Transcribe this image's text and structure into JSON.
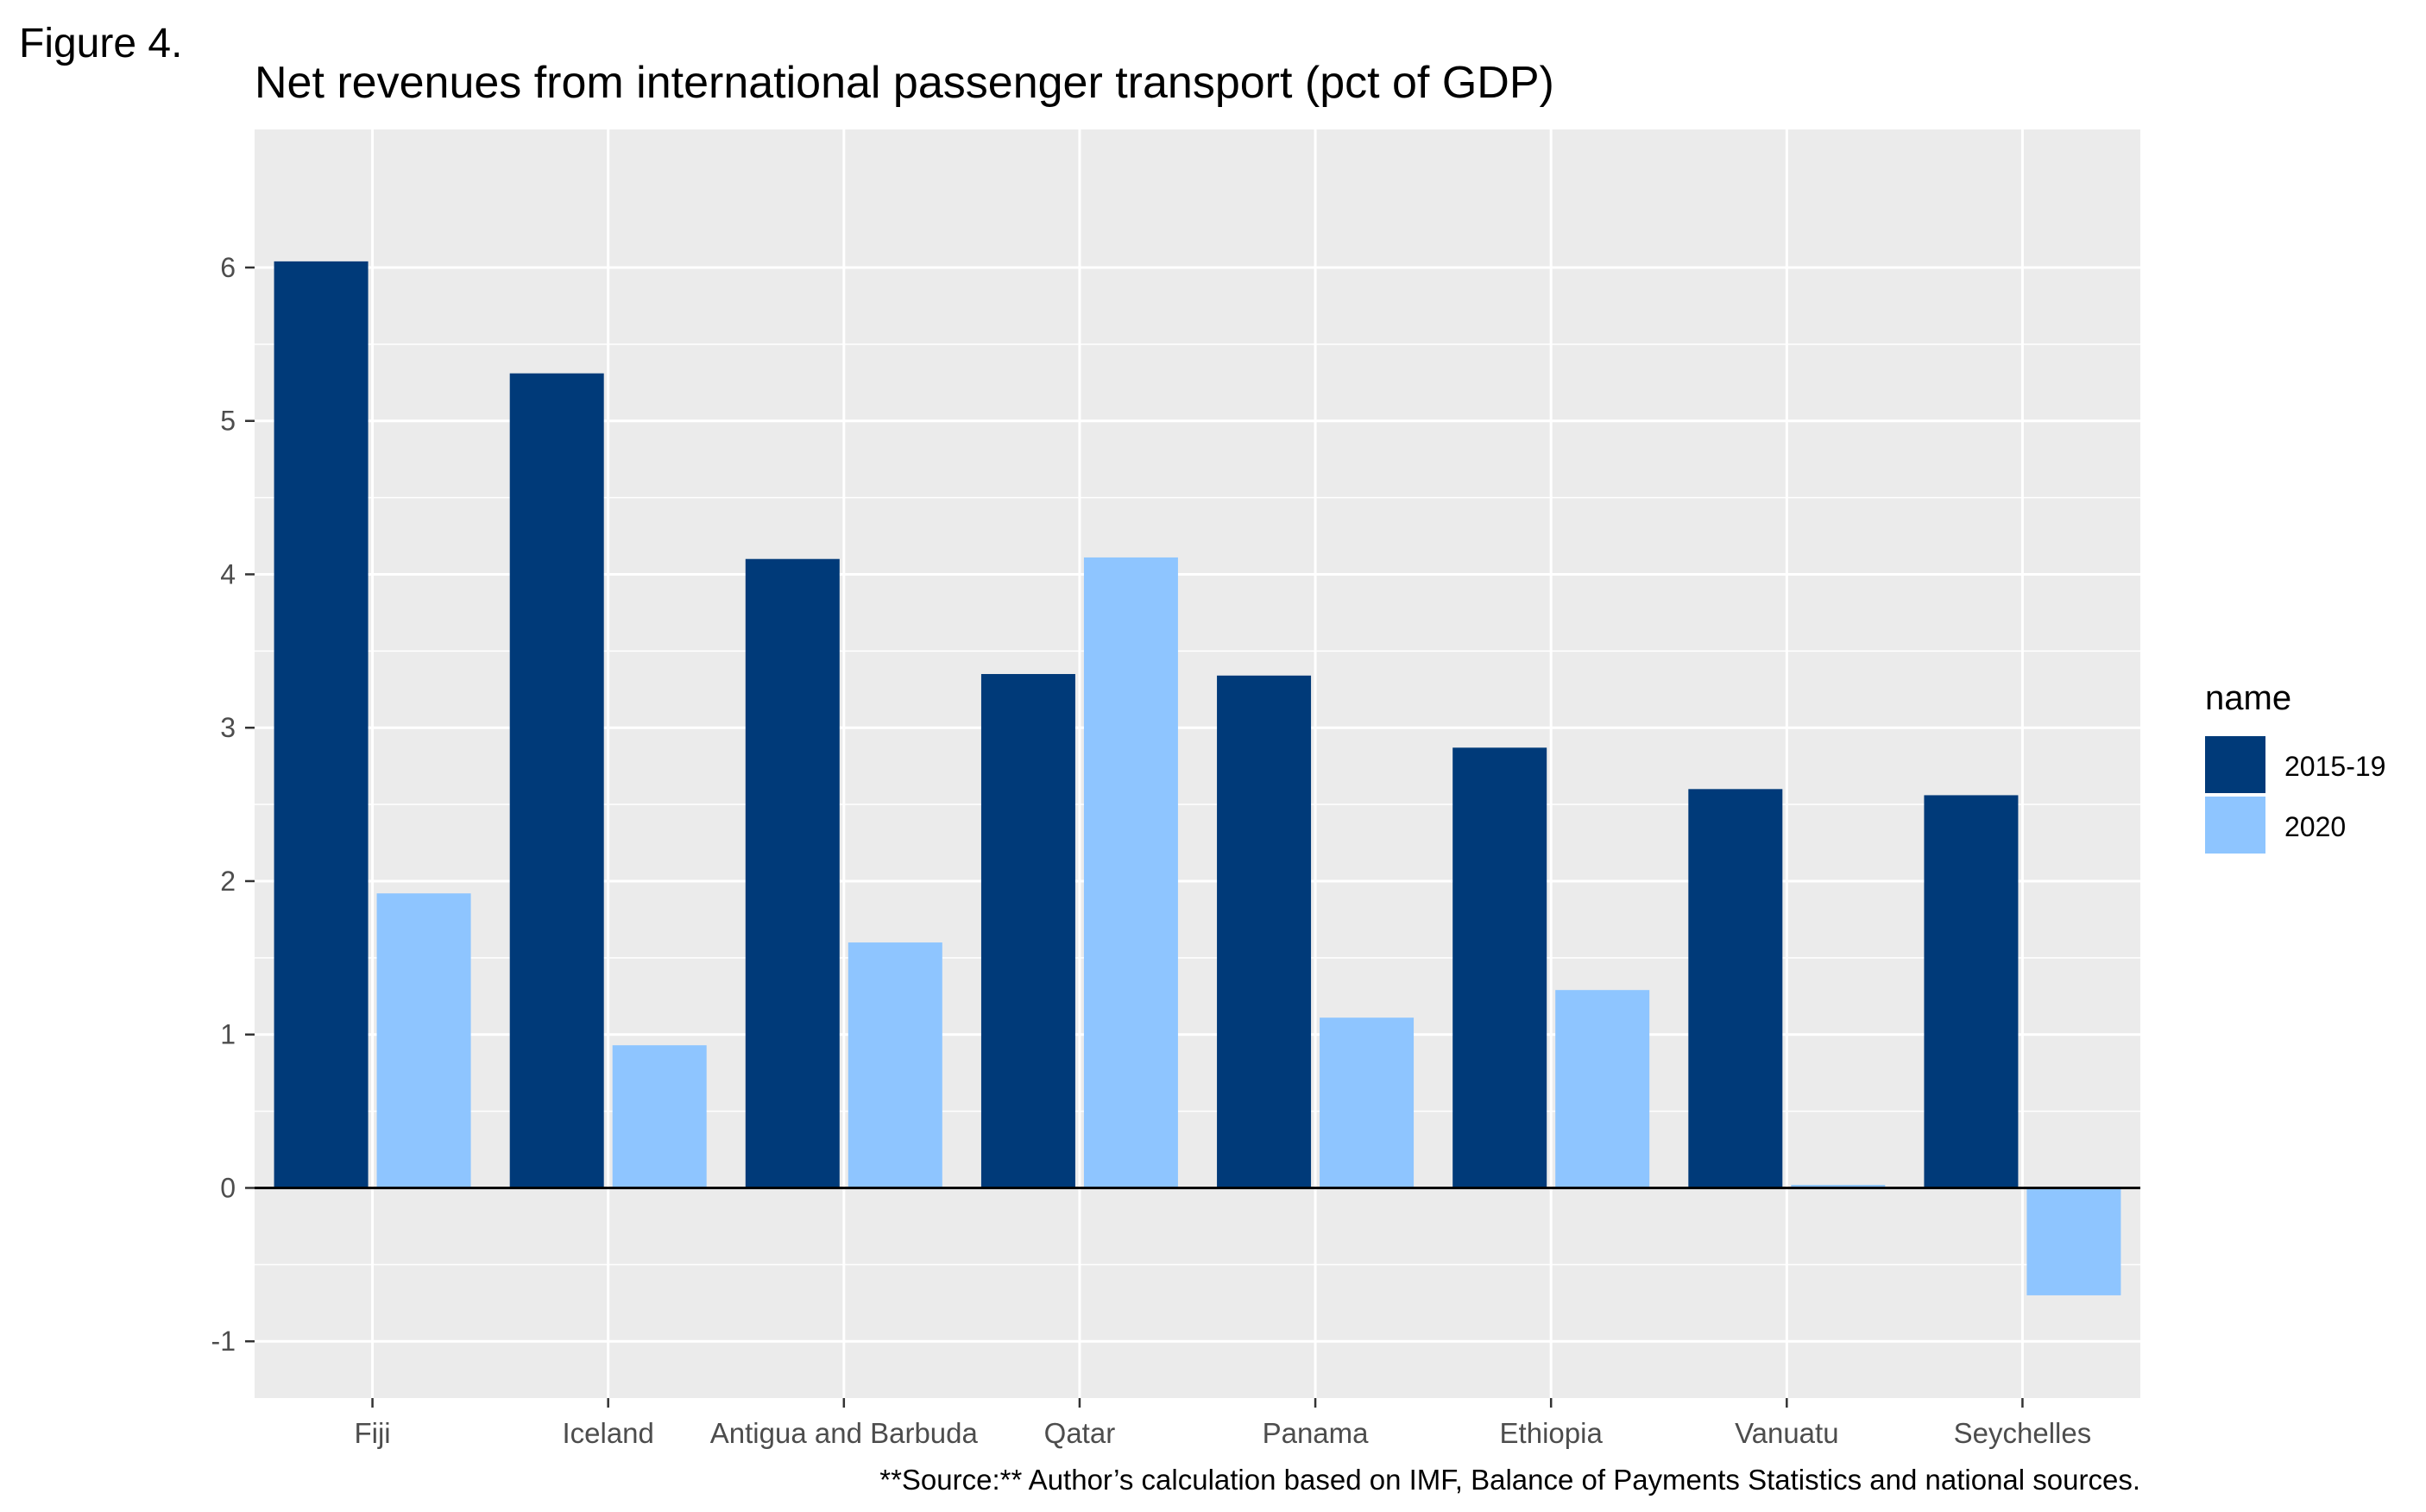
{
  "figure_label": "Figure 4.",
  "source_note": "**Source:** Author’s calculation based on IMF, Balance of Payments Statistics and national sources.",
  "legend": {
    "title": "name",
    "items": [
      "2015-19",
      "2020"
    ]
  },
  "colors": {
    "panel_background": "#EBEBEB",
    "grid": "#FFFFFF",
    "zero_line": "#000000",
    "series_2015_19": "#003A79",
    "series_2020": "#8EC5FF"
  },
  "chart_data": {
    "type": "bar",
    "title": "Net revenues from international passenger transport (pct of GDP)",
    "xlabel": "",
    "ylabel": "",
    "categories": [
      "Fiji",
      "Iceland",
      "Antigua and Barbuda",
      "Qatar",
      "Panama",
      "Ethiopia",
      "Vanuatu",
      "Seychelles"
    ],
    "series": [
      {
        "name": "2015-19",
        "values": [
          6.04,
          5.31,
          4.1,
          3.35,
          3.34,
          2.87,
          2.6,
          2.56
        ]
      },
      {
        "name": "2020",
        "values": [
          1.92,
          0.93,
          1.6,
          4.11,
          1.11,
          1.29,
          0.02,
          -0.7
        ]
      }
    ],
    "ylim": [
      -1.37,
      6.9
    ],
    "yticks": [
      -1,
      0,
      1,
      2,
      3,
      4,
      5,
      6
    ],
    "grid": true,
    "legend_position": "right"
  }
}
